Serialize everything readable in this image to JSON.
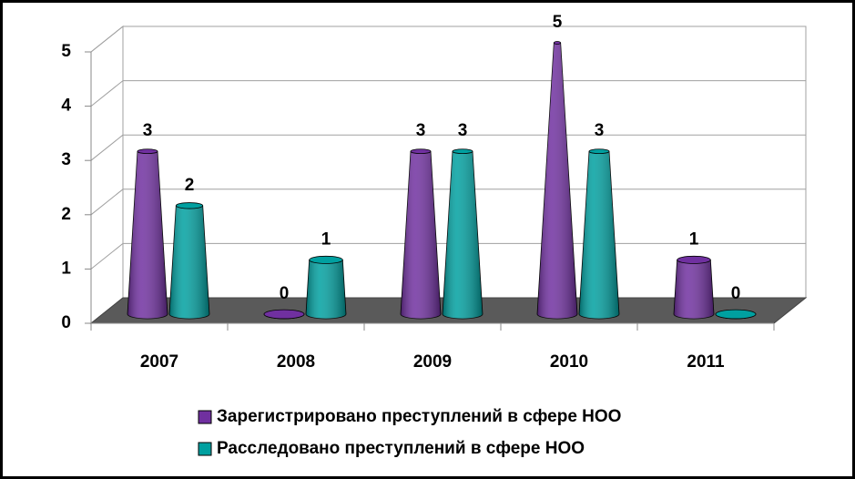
{
  "chart_data": {
    "type": "bar3d",
    "categories": [
      "2007",
      "2008",
      "2009",
      "2010",
      "2011"
    ],
    "series": [
      {
        "name": "Зарегистрировано преступлений в сфере НОО",
        "color": "#7030a0",
        "values": [
          3,
          0,
          3,
          5,
          1
        ]
      },
      {
        "name": "Расследовано преступлений в сфере НОО",
        "color": "#00a0a0",
        "values": [
          2,
          1,
          3,
          3,
          0
        ]
      }
    ],
    "ylim": [
      0,
      5
    ],
    "yticks": [
      0,
      1,
      2,
      3,
      4,
      5
    ],
    "grid": true
  }
}
